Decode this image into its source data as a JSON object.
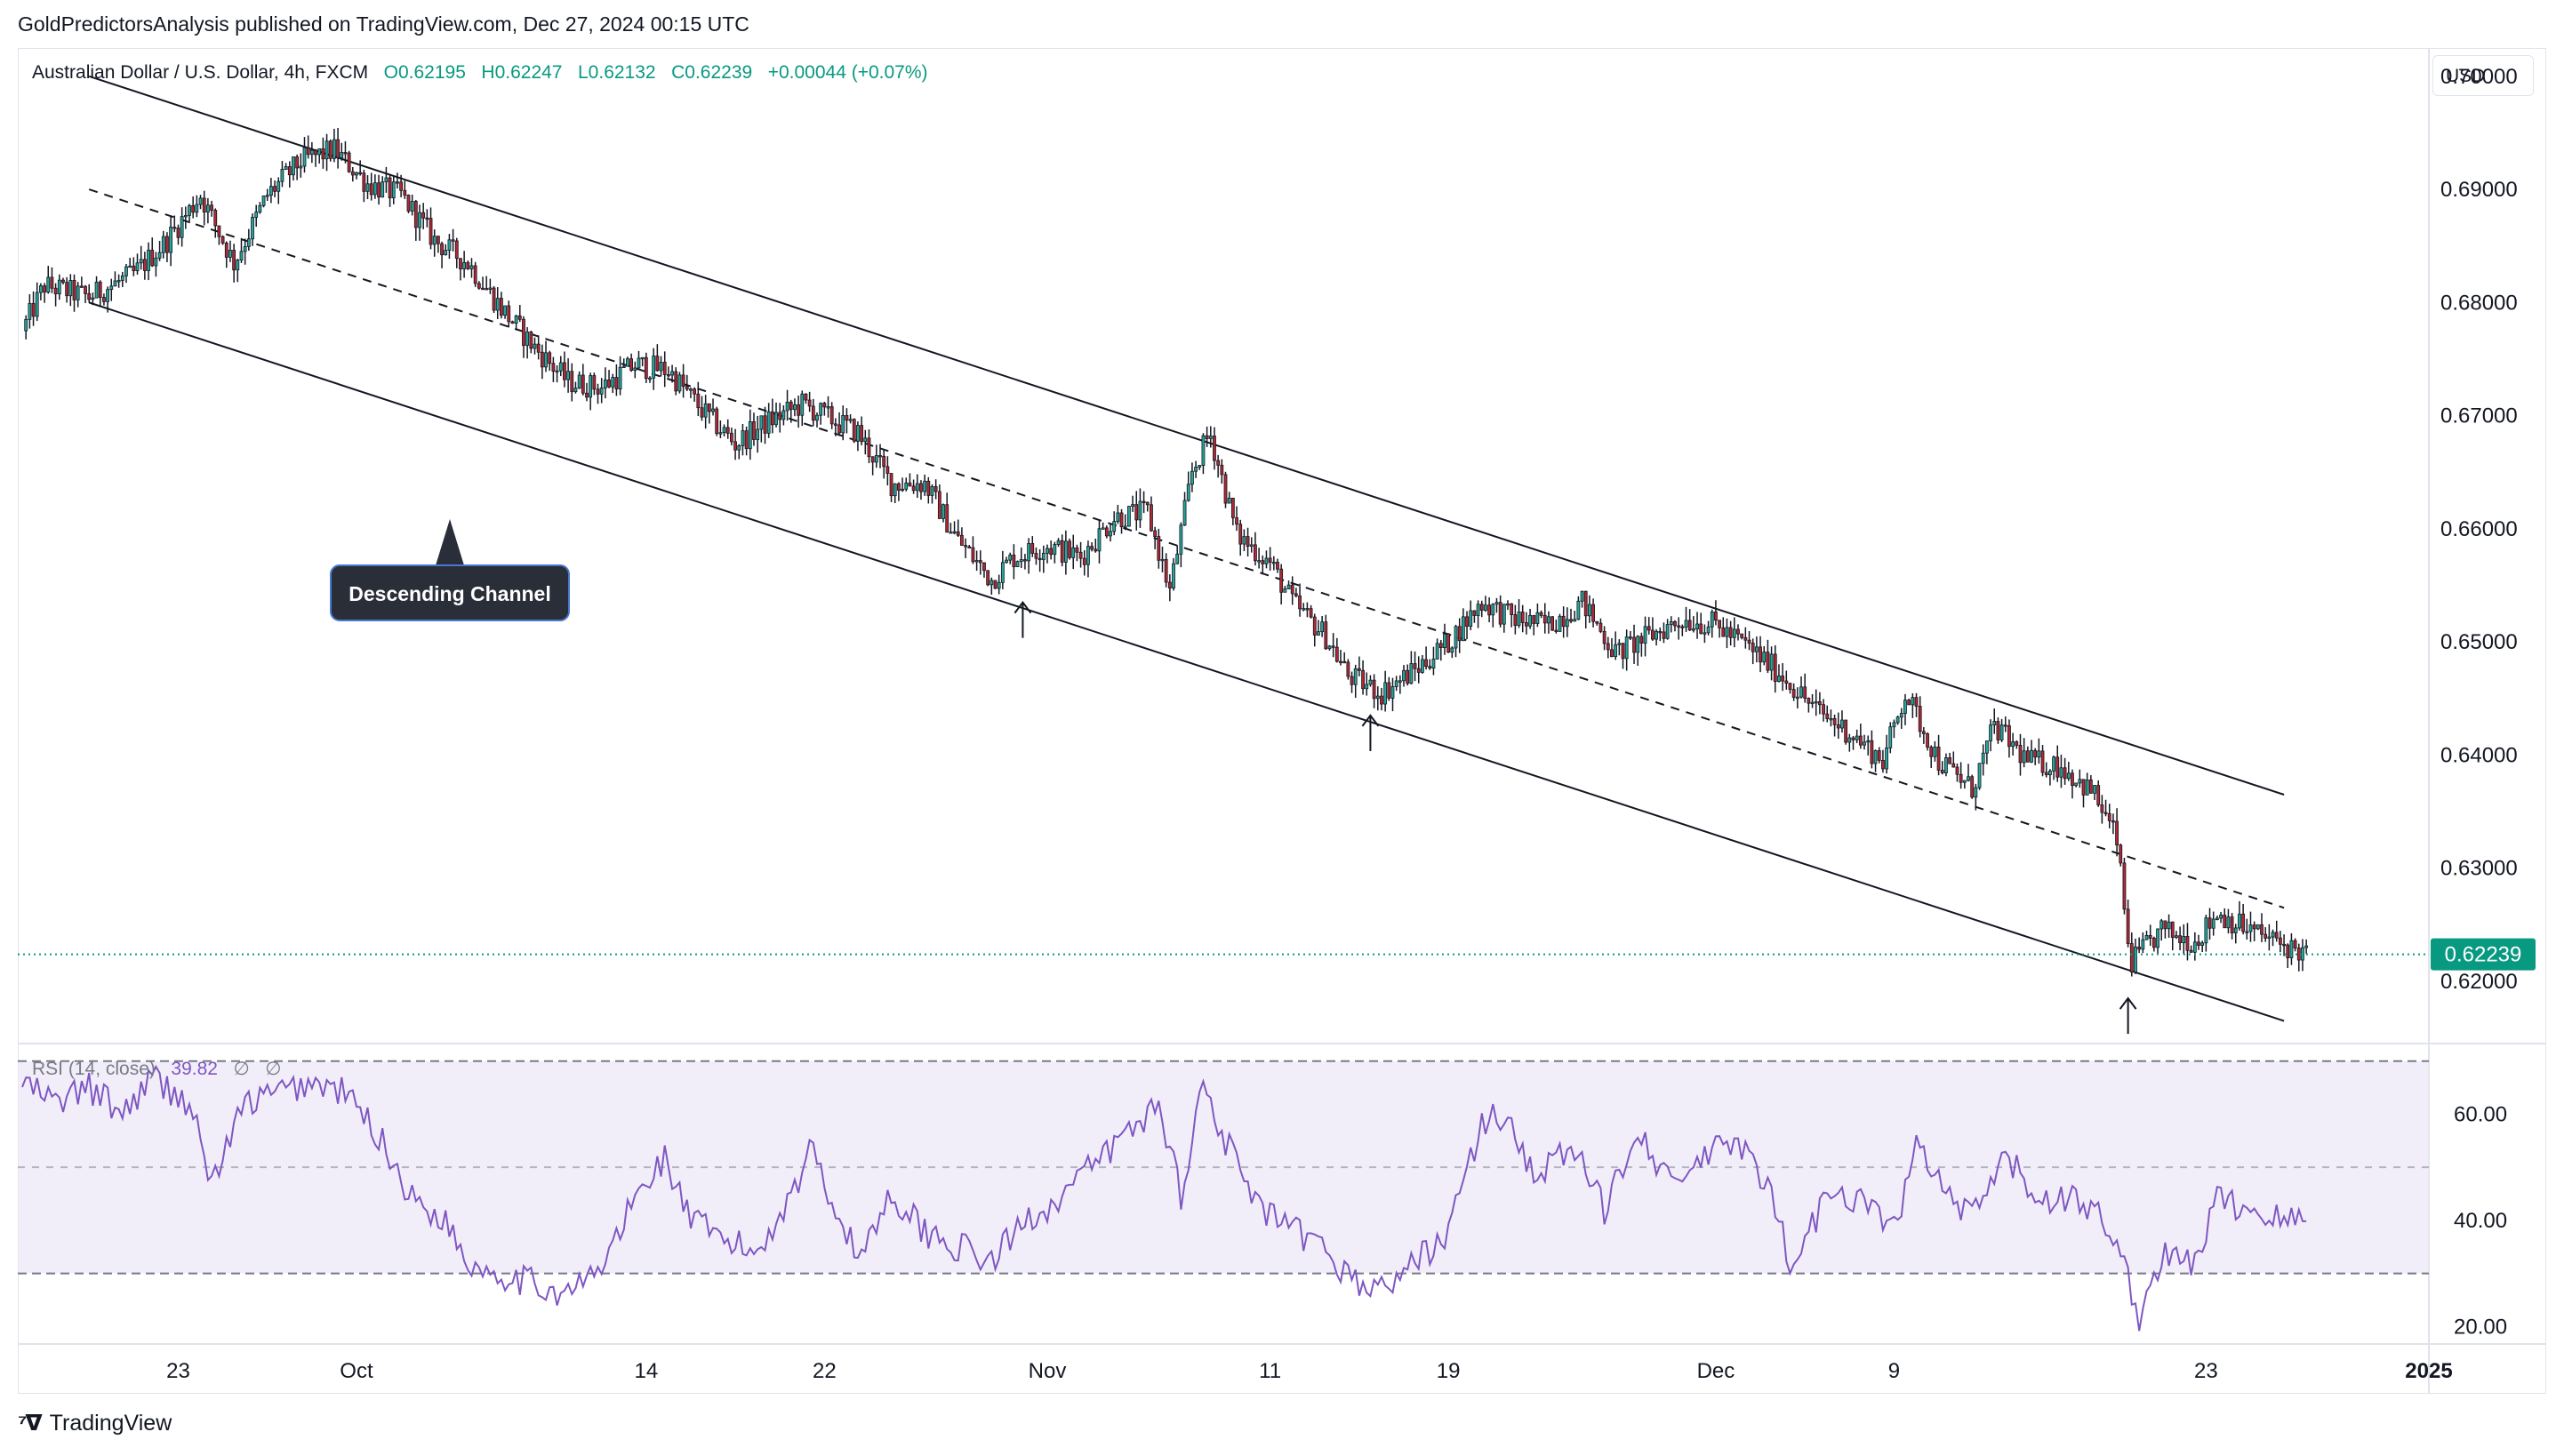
{
  "header": {
    "publisher": "GoldPredictorsAnalysis published on TradingView.com, Dec 27, 2024 00:15 UTC"
  },
  "legend": {
    "symbol": "Australian Dollar / U.S. Dollar, 4h, FXCM",
    "open": "O0.62195",
    "high": "H0.62247",
    "low": "L0.62132",
    "close": "C0.62239",
    "change": "+0.00044 (+0.07%)"
  },
  "currency_button": "USD",
  "rsi_legend": {
    "name": "RSI (14, close)",
    "value": "39.82",
    "extra1": "∅",
    "extra2": "∅"
  },
  "footer": {
    "brand": "TradingView"
  },
  "colors": {
    "up": "#089981",
    "down": "#f23645",
    "candle_up": "#26a69a",
    "candle_down": "#b22833",
    "rsi_line": "#7e57c2",
    "rsi_band": "#ede7f6",
    "last_price_bg": "#089981",
    "annotation_bg": "#2a2e39"
  },
  "chart_data": [
    {
      "type": "candlestick",
      "title": "Australian Dollar / U.S. Dollar, 4h, FXCM",
      "y_ticks": [
        "0.70000",
        "0.69000",
        "0.68000",
        "0.67000",
        "0.66000",
        "0.65000",
        "0.64000",
        "0.63000",
        "0.62000"
      ],
      "ylim": [
        0.6145,
        0.7025
      ],
      "x_ticks": [
        "23",
        "Oct",
        "14",
        "22",
        "Nov",
        "11",
        "19",
        "Dec",
        "9",
        "23",
        "2025"
      ],
      "x_tick_days": [
        -8,
        0,
        13,
        21,
        31,
        41,
        49,
        61,
        69,
        83,
        93
      ],
      "xlim_days": [
        -15.2,
        93
      ],
      "last_price": "0.62239",
      "last_price_value": 0.62239,
      "closes_anchor": [
        [
          -15,
          0.6775
        ],
        [
          -14,
          0.6815
        ],
        [
          -12,
          0.6805
        ],
        [
          -10,
          0.6825
        ],
        [
          -8.5,
          0.6855
        ],
        [
          -7,
          0.6895
        ],
        [
          -5.5,
          0.6835
        ],
        [
          -4,
          0.6895
        ],
        [
          -2.5,
          0.6925
        ],
        [
          -1,
          0.6935
        ],
        [
          0.5,
          0.6905
        ],
        [
          2,
          0.6895
        ],
        [
          3.5,
          0.6855
        ],
        [
          5,
          0.6835
        ],
        [
          6.5,
          0.6795
        ],
        [
          8,
          0.676
        ],
        [
          9.5,
          0.673
        ],
        [
          11,
          0.6725
        ],
        [
          12.5,
          0.6745
        ],
        [
          14,
          0.674
        ],
        [
          15.5,
          0.6705
        ],
        [
          17,
          0.6675
        ],
        [
          18.5,
          0.6695
        ],
        [
          20,
          0.671
        ],
        [
          21,
          0.67
        ],
        [
          22.5,
          0.6685
        ],
        [
          24,
          0.664
        ],
        [
          25.5,
          0.664
        ],
        [
          27,
          0.659
        ],
        [
          28.5,
          0.6555
        ],
        [
          29.5,
          0.6575
        ],
        [
          31,
          0.6585
        ],
        [
          32.5,
          0.6575
        ],
        [
          34,
          0.661
        ],
        [
          35.5,
          0.6615
        ],
        [
          36.5,
          0.6545
        ],
        [
          37.5,
          0.665
        ],
        [
          38.3,
          0.6685
        ],
        [
          39.5,
          0.6595
        ],
        [
          41,
          0.657
        ],
        [
          42,
          0.6535
        ],
        [
          43.5,
          0.6505
        ],
        [
          44.5,
          0.647
        ],
        [
          46,
          0.6455
        ],
        [
          47.5,
          0.6475
        ],
        [
          49,
          0.65
        ],
        [
          50.5,
          0.6535
        ],
        [
          52,
          0.652
        ],
        [
          53.5,
          0.6515
        ],
        [
          55,
          0.6535
        ],
        [
          56.5,
          0.649
        ],
        [
          58,
          0.6505
        ],
        [
          59.5,
          0.652
        ],
        [
          61,
          0.6515
        ],
        [
          62.5,
          0.6495
        ],
        [
          64,
          0.647
        ],
        [
          65.5,
          0.644
        ],
        [
          67,
          0.642
        ],
        [
          68.5,
          0.6395
        ],
        [
          69.5,
          0.6455
        ],
        [
          71,
          0.6395
        ],
        [
          72.5,
          0.637
        ],
        [
          73.5,
          0.6425
        ],
        [
          75,
          0.6395
        ],
        [
          76.5,
          0.639
        ],
        [
          78,
          0.6365
        ],
        [
          79,
          0.6325
        ],
        [
          79.6,
          0.6215
        ],
        [
          81,
          0.6245
        ],
        [
          82.5,
          0.6235
        ],
        [
          83.5,
          0.626
        ],
        [
          85,
          0.6245
        ],
        [
          86.5,
          0.6232
        ],
        [
          87.5,
          0.6224
        ]
      ]
    },
    {
      "type": "line",
      "name": "RSI (14, close)",
      "y_ticks": [
        "60.00",
        "40.00",
        "20.00"
      ],
      "ylim": [
        16.7,
        73.3
      ],
      "bands": [
        70,
        50,
        30
      ],
      "last_value": 39.82,
      "anchors": [
        [
          -15,
          66
        ],
        [
          -13.5,
          62
        ],
        [
          -12,
          65
        ],
        [
          -10.5,
          60
        ],
        [
          -9.2,
          67
        ],
        [
          -7.5,
          62
        ],
        [
          -6.5,
          47
        ],
        [
          -5,
          62
        ],
        [
          -3.5,
          64
        ],
        [
          -2,
          66
        ],
        [
          -0.5,
          64
        ],
        [
          1,
          56
        ],
        [
          2.5,
          44
        ],
        [
          4,
          40
        ],
        [
          5,
          32
        ],
        [
          6.5,
          30
        ],
        [
          8,
          28
        ],
        [
          9.5,
          26
        ],
        [
          11,
          31
        ],
        [
          12.5,
          44
        ],
        [
          13.8,
          52
        ],
        [
          15,
          40
        ],
        [
          16.5,
          36
        ],
        [
          18,
          34
        ],
        [
          19.5,
          45
        ],
        [
          20.5,
          54
        ],
        [
          21.5,
          42
        ],
        [
          22.5,
          33
        ],
        [
          24,
          45
        ],
        [
          25.5,
          38
        ],
        [
          27,
          35
        ],
        [
          28.5,
          32
        ],
        [
          30,
          40
        ],
        [
          31.5,
          44
        ],
        [
          33,
          50
        ],
        [
          34.5,
          56
        ],
        [
          36,
          62
        ],
        [
          37,
          45
        ],
        [
          38,
          66
        ],
        [
          39,
          55
        ],
        [
          40.5,
          42
        ],
        [
          42,
          38
        ],
        [
          43.5,
          34
        ],
        [
          45,
          28
        ],
        [
          46,
          27
        ],
        [
          47.5,
          32
        ],
        [
          49,
          38
        ],
        [
          50.5,
          58
        ],
        [
          51.5,
          60
        ],
        [
          53,
          48
        ],
        [
          54.5,
          54
        ],
        [
          56,
          42
        ],
        [
          57.5,
          58
        ],
        [
          59,
          46
        ],
        [
          60.5,
          52
        ],
        [
          62,
          55
        ],
        [
          63.5,
          44
        ],
        [
          64.5,
          30
        ],
        [
          66,
          46
        ],
        [
          67.5,
          44
        ],
        [
          69,
          38
        ],
        [
          70,
          54
        ],
        [
          71.5,
          44
        ],
        [
          72.5,
          40
        ],
        [
          74,
          52
        ],
        [
          75.5,
          44
        ],
        [
          77,
          44
        ],
        [
          78.5,
          40
        ],
        [
          79.5,
          29
        ],
        [
          80,
          22
        ],
        [
          81,
          33
        ],
        [
          82.5,
          32
        ],
        [
          83.5,
          44
        ],
        [
          85,
          42
        ],
        [
          86.5,
          40
        ],
        [
          87.5,
          39.82
        ]
      ]
    }
  ],
  "channel": {
    "upper_line": [
      [
        -12.0,
        0.7
      ],
      [
        86.5,
        0.6365
      ]
    ],
    "lower_line": [
      [
        -12.0,
        0.68
      ],
      [
        86.5,
        0.6165
      ]
    ],
    "mid_line": [
      [
        -12.0,
        0.69
      ],
      [
        86.5,
        0.6265
      ]
    ]
  },
  "annotation": {
    "label": "Descending Channel"
  },
  "arrows": [
    [
      29.9,
      0.6535
    ],
    [
      45.5,
      0.6435
    ],
    [
      79.5,
      0.6185
    ]
  ]
}
